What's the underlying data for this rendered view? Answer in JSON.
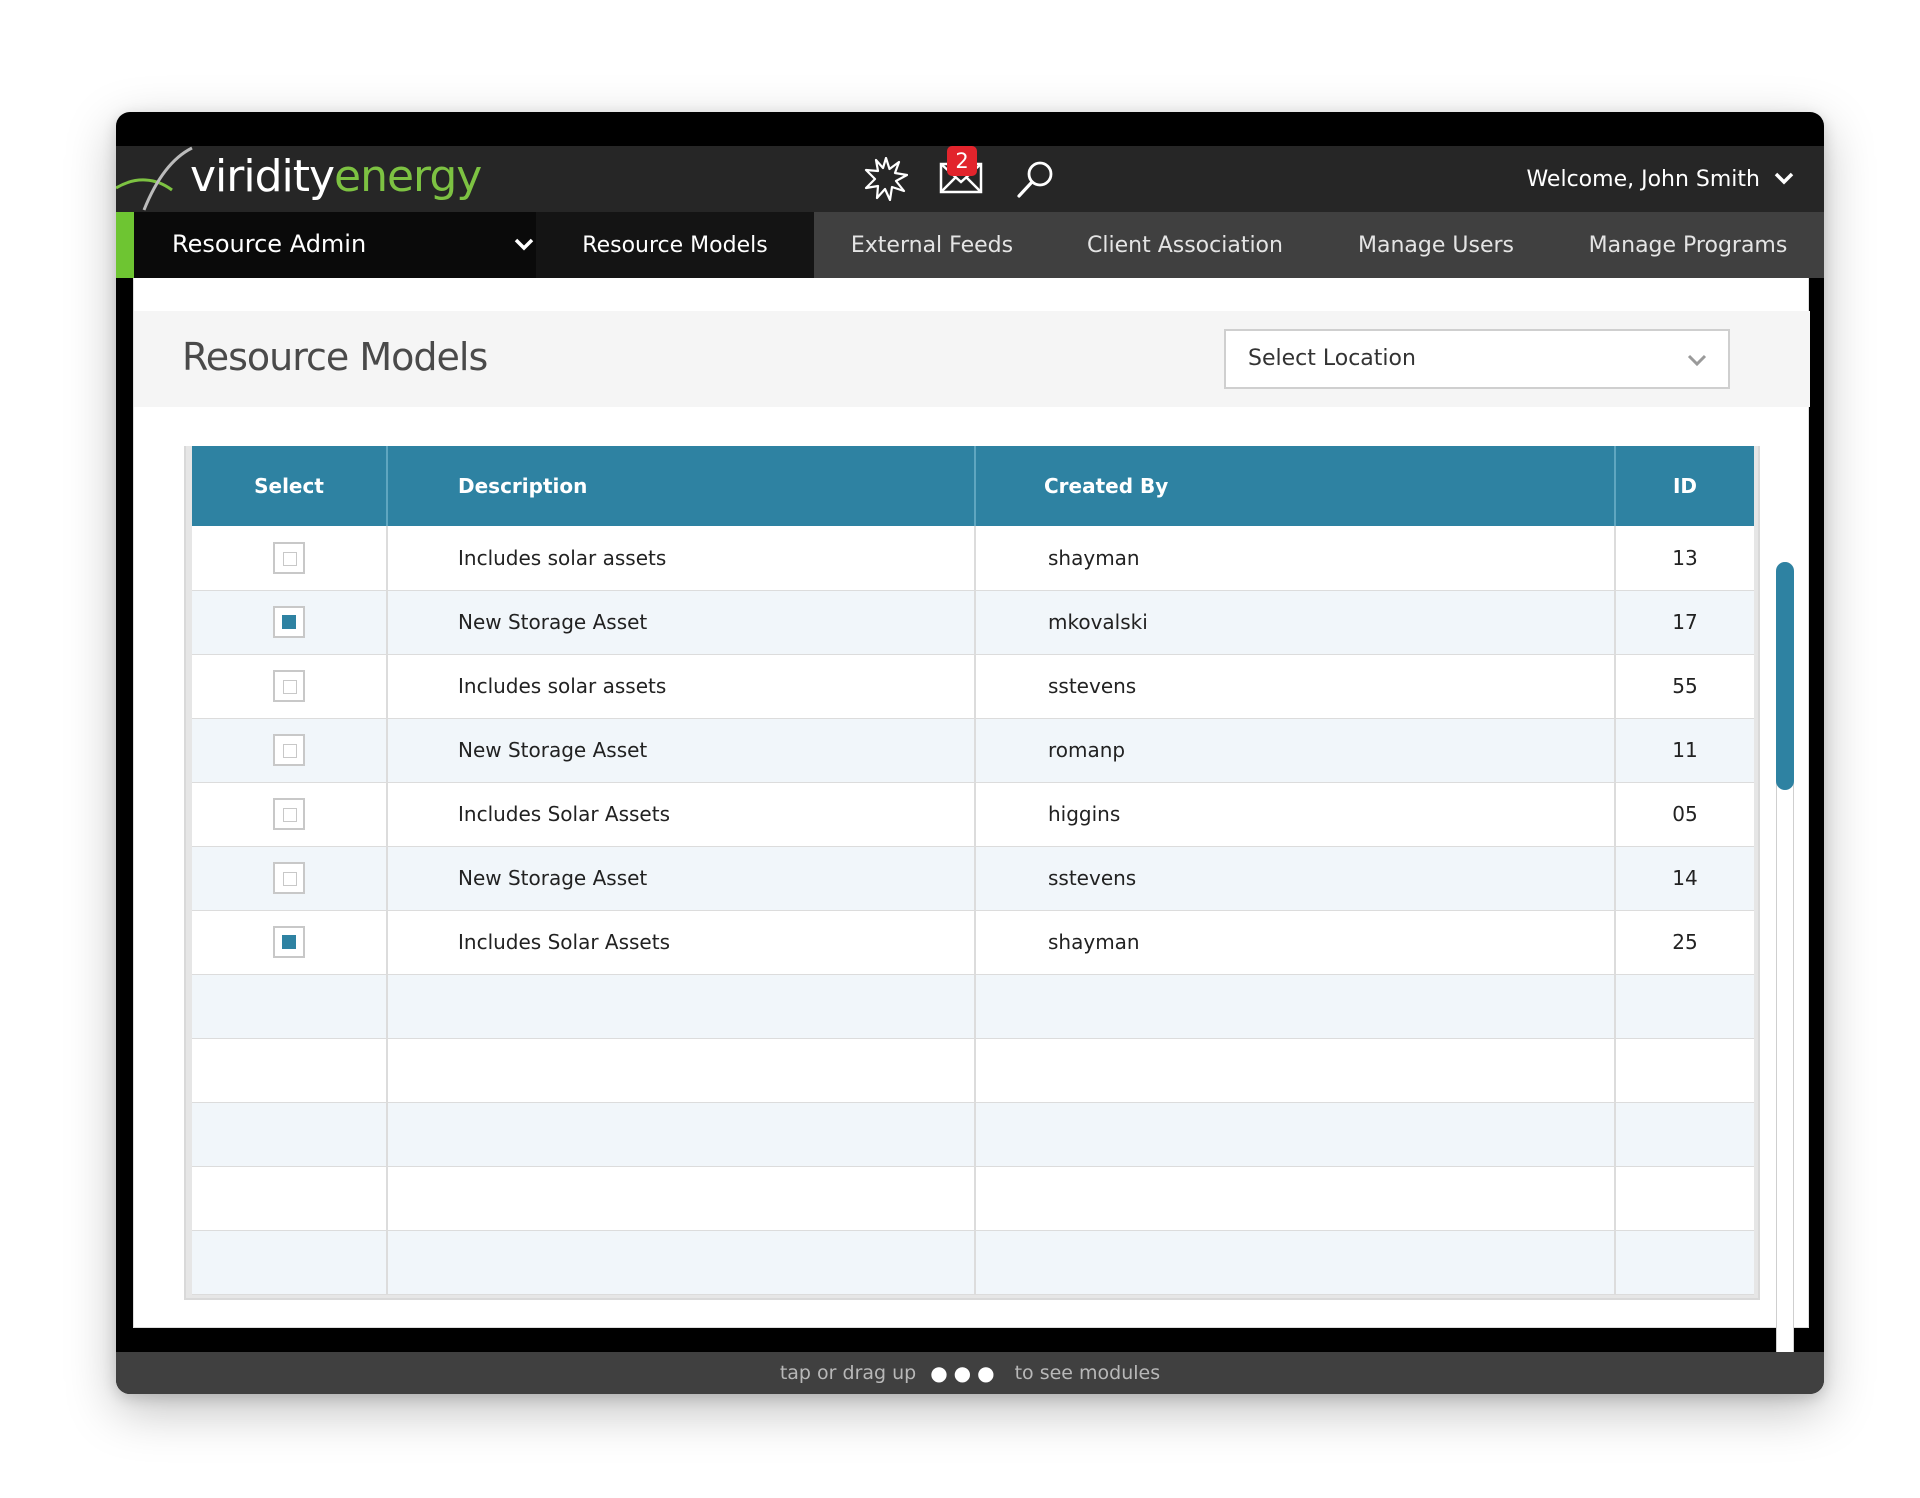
{
  "brand": {
    "logo_part1": "viridity",
    "logo_part2": "energy",
    "green": "#7dc242",
    "accent_blue": "#2e82a2"
  },
  "topbar": {
    "icons": [
      "starburst-icon",
      "mail-icon",
      "search-icon"
    ],
    "mail_badge_count": "2",
    "welcome_text": "Welcome, John Smith"
  },
  "nav": {
    "module_title": "Resource Admin",
    "tabs": [
      {
        "label": "Resource Models",
        "active": true
      },
      {
        "label": "External Feeds",
        "active": false
      },
      {
        "label": "Client Association",
        "active": false
      },
      {
        "label": "Manage Users",
        "active": false
      },
      {
        "label": "Manage Programs",
        "active": false
      }
    ]
  },
  "page": {
    "title": "Resource Models",
    "location_select_value": "Select Location"
  },
  "table": {
    "columns": [
      "Select",
      "Description",
      "Created By",
      "ID"
    ],
    "rows": [
      {
        "checked": false,
        "description": "Includes solar assets",
        "created_by": "shayman",
        "id": "13"
      },
      {
        "checked": true,
        "description": "New Storage Asset",
        "created_by": "mkovalski",
        "id": "17"
      },
      {
        "checked": false,
        "description": "Includes solar assets",
        "created_by": "sstevens",
        "id": "55"
      },
      {
        "checked": false,
        "description": "New Storage Asset",
        "created_by": "romanp",
        "id": "11"
      },
      {
        "checked": false,
        "description": "Includes Solar Assets",
        "created_by": "higgins",
        "id": "05"
      },
      {
        "checked": false,
        "description": "New Storage Asset",
        "created_by": "sstevens",
        "id": "14"
      },
      {
        "checked": true,
        "description": "Includes Solar Assets",
        "created_by": "shayman",
        "id": "25"
      }
    ],
    "empty_rows": 5
  },
  "footer": {
    "hint_before": "tap or drag up",
    "hint_dots": "●●●",
    "hint_after": "to see modules"
  }
}
